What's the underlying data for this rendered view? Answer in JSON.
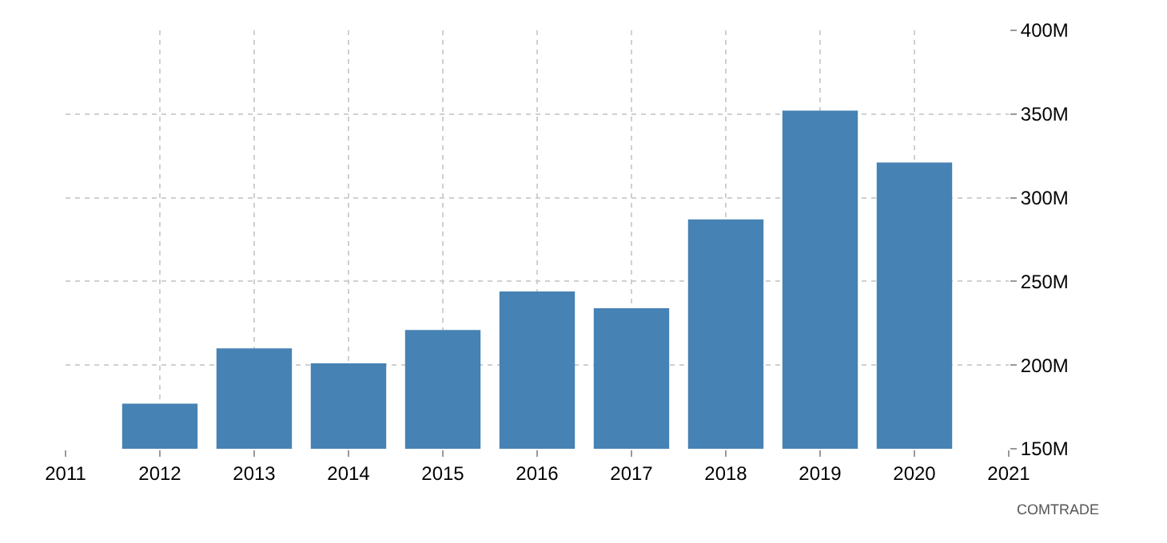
{
  "chart_data": {
    "type": "bar",
    "x": [
      2012,
      2013,
      2014,
      2015,
      2016,
      2017,
      2018,
      2019,
      2020
    ],
    "values": [
      177000000,
      210000000,
      201000000,
      221000000,
      244000000,
      234000000,
      287000000,
      352000000,
      321000000
    ],
    "color": "#4682b4",
    "xlim": [
      2011,
      2021
    ],
    "xticks": [
      2011,
      2012,
      2013,
      2014,
      2015,
      2016,
      2017,
      2018,
      2019,
      2020,
      2021
    ],
    "ylim": [
      150000000,
      400000000
    ],
    "yticks": [
      {
        "value": 150000000,
        "label": "150M"
      },
      {
        "value": 200000000,
        "label": "200M"
      },
      {
        "value": 250000000,
        "label": "250M"
      },
      {
        "value": 300000000,
        "label": "300M"
      },
      {
        "value": 350000000,
        "label": "350M"
      },
      {
        "value": 400000000,
        "label": "400M"
      }
    ],
    "grid": true,
    "annotations": [
      "COMTRADE"
    ]
  }
}
